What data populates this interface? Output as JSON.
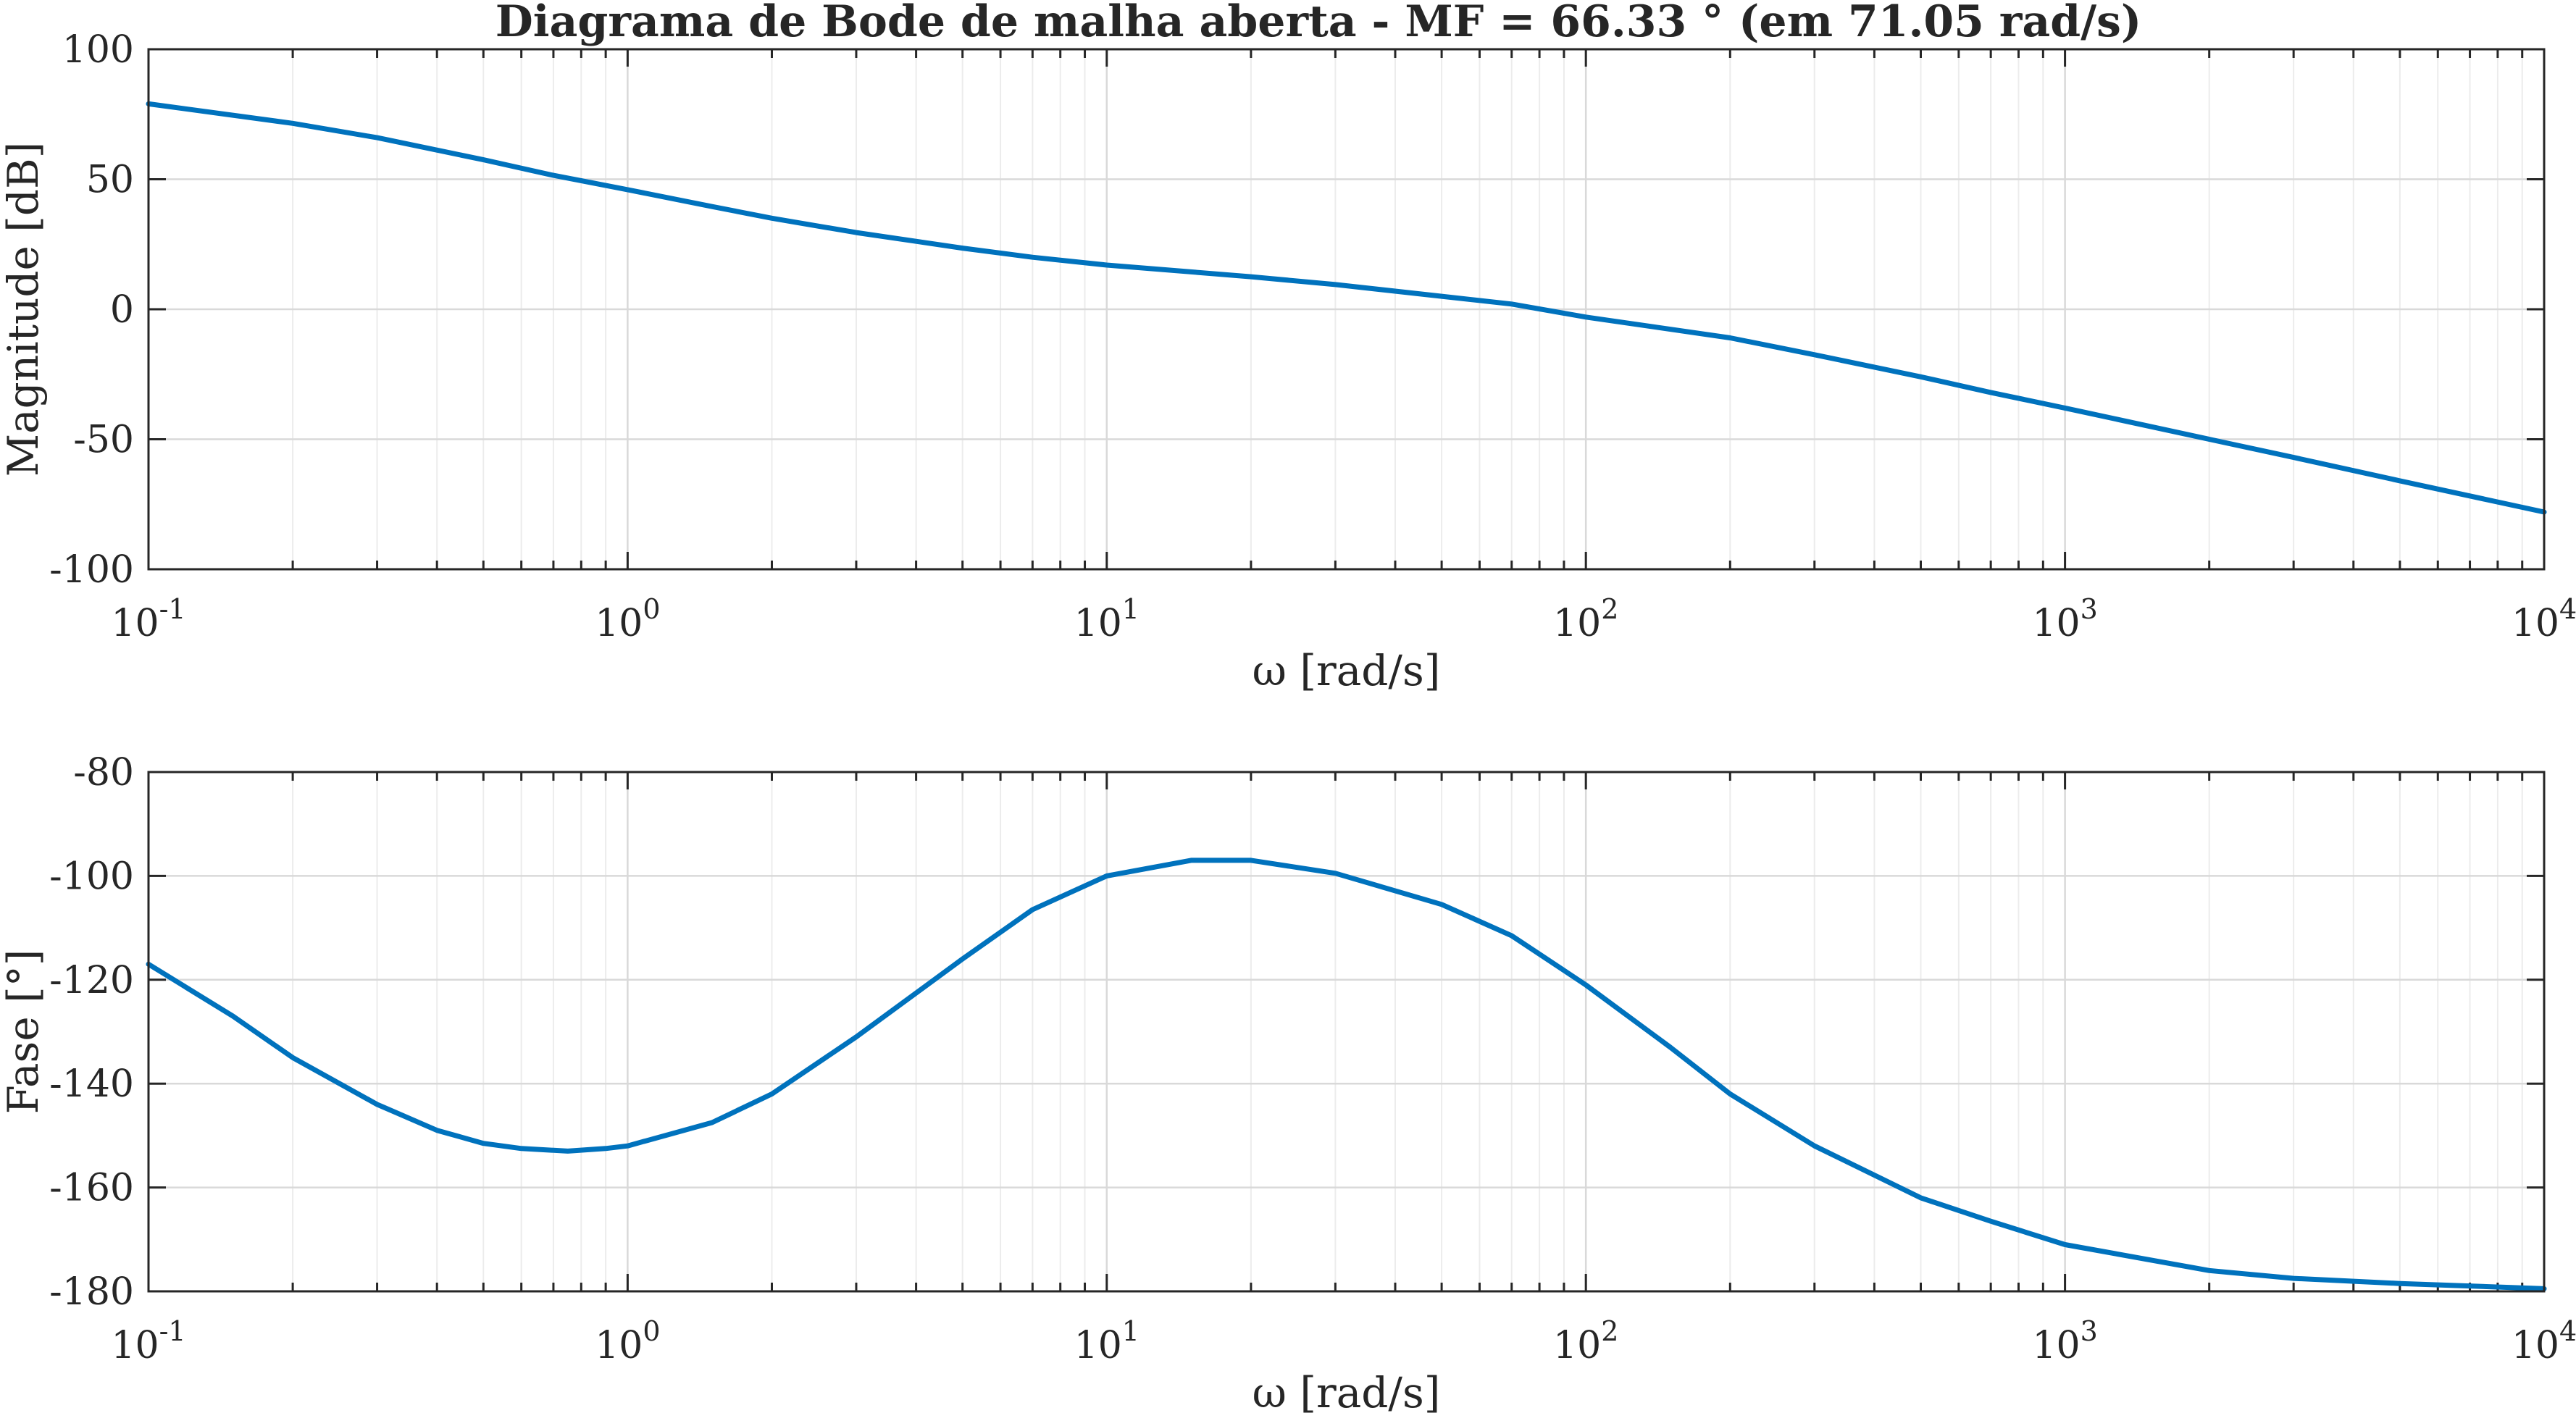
{
  "chart_data": [
    {
      "type": "line",
      "title": "Diagrama de Bode de malha aberta -  MF = 66.33 ° (em 71.05 rad/s)",
      "xlabel": "ω [rad/s]",
      "ylabel": "Magnitude [dB]",
      "xscale": "log",
      "xlim": [
        0.1,
        10000
      ],
      "ylim": [
        -100,
        100
      ],
      "xticks": [
        0.1,
        1,
        10,
        100,
        1000,
        10000
      ],
      "xtick_labels": [
        {
          "base": "10",
          "exp": "-1"
        },
        {
          "base": "10",
          "exp": "0"
        },
        {
          "base": "10",
          "exp": "1"
        },
        {
          "base": "10",
          "exp": "2"
        },
        {
          "base": "10",
          "exp": "3"
        },
        {
          "base": "10",
          "exp": "4"
        }
      ],
      "yticks": [
        -100,
        -50,
        0,
        50,
        100
      ],
      "ytick_labels": [
        "-100",
        "-50",
        "0",
        "50",
        "100"
      ],
      "grid": true,
      "series": [
        {
          "color": "#0072bd",
          "x": [
            0.1,
            0.2,
            0.3,
            0.5,
            0.7,
            1,
            1.5,
            2,
            3,
            5,
            7,
            10,
            20,
            30,
            50,
            70,
            100,
            200,
            300,
            500,
            700,
            1000,
            2000,
            3000,
            5000,
            10000
          ],
          "y": [
            79,
            71.5,
            66,
            57.5,
            51.5,
            46,
            39.5,
            35,
            29.5,
            23.5,
            20,
            17,
            12.5,
            9.5,
            5,
            2,
            -3,
            -11,
            -17.5,
            -26,
            -32,
            -38,
            -50,
            -57,
            -66,
            -78
          ]
        }
      ]
    },
    {
      "type": "line",
      "xlabel": "ω [rad/s]",
      "ylabel": "Fase [°]",
      "xscale": "log",
      "xlim": [
        0.1,
        10000
      ],
      "ylim": [
        -180,
        -80
      ],
      "xticks": [
        0.1,
        1,
        10,
        100,
        1000,
        10000
      ],
      "xtick_labels": [
        {
          "base": "10",
          "exp": "-1"
        },
        {
          "base": "10",
          "exp": "0"
        },
        {
          "base": "10",
          "exp": "1"
        },
        {
          "base": "10",
          "exp": "2"
        },
        {
          "base": "10",
          "exp": "3"
        },
        {
          "base": "10",
          "exp": "4"
        }
      ],
      "yticks": [
        -180,
        -160,
        -140,
        -120,
        -100,
        -80
      ],
      "ytick_labels": [
        "-180",
        "-160",
        "-140",
        "-120",
        "-100",
        "-80"
      ],
      "grid": true,
      "series": [
        {
          "color": "#0072bd",
          "x": [
            0.1,
            0.15,
            0.2,
            0.3,
            0.4,
            0.5,
            0.6,
            0.75,
            0.9,
            1,
            1.5,
            2,
            3,
            5,
            7,
            10,
            15,
            20,
            30,
            50,
            70,
            100,
            150,
            200,
            300,
            500,
            700,
            1000,
            2000,
            3000,
            5000,
            10000
          ],
          "y": [
            -117,
            -127,
            -135,
            -144,
            -149,
            -151.5,
            -152.5,
            -153,
            -152.5,
            -152,
            -147.5,
            -142,
            -131,
            -116,
            -106.5,
            -100,
            -97,
            -97,
            -99.5,
            -105.5,
            -111.5,
            -121,
            -133,
            -142,
            -152,
            -162,
            -166.5,
            -171,
            -176,
            -177.5,
            -178.5,
            -179.5
          ]
        }
      ]
    }
  ]
}
